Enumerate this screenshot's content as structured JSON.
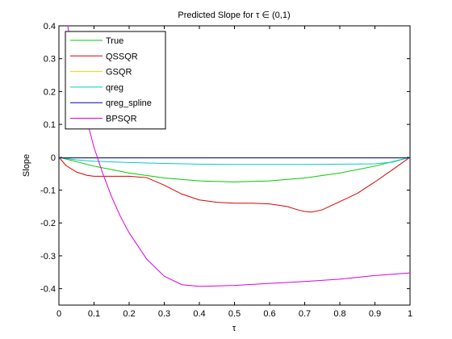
{
  "chart_data": {
    "type": "line",
    "title": "Predicted Slope for τ ∈ (0,1)",
    "xlabel": "τ",
    "ylabel": "Slope",
    "xlim": [
      0,
      1
    ],
    "ylim": [
      -0.45,
      0.4
    ],
    "xticks": [
      "0",
      "0.1",
      "0.2",
      "0.3",
      "0.4",
      "0.5",
      "0.6",
      "0.7",
      "0.8",
      "0.9",
      "1"
    ],
    "xtick_values": [
      0,
      0.1,
      0.2,
      0.3,
      0.4,
      0.5,
      0.6,
      0.7,
      0.8,
      0.9,
      1
    ],
    "yticks": [
      "0.4",
      "0.3",
      "0.2",
      "0.1",
      "0",
      "-0.1",
      "-0.2",
      "-0.3",
      "-0.4"
    ],
    "ytick_values": [
      0.4,
      0.3,
      0.2,
      0.1,
      0,
      -0.1,
      -0.2,
      -0.3,
      -0.4
    ],
    "grid": false,
    "legend_position": "top-left",
    "series": [
      {
        "name": "True",
        "color": "#00cc00",
        "x": [
          0,
          0.1,
          0.2,
          0.3,
          0.4,
          0.5,
          0.6,
          0.7,
          0.8,
          0.9,
          1
        ],
        "y": [
          0,
          -0.027,
          -0.048,
          -0.063,
          -0.072,
          -0.075,
          -0.072,
          -0.063,
          -0.048,
          -0.027,
          0
        ]
      },
      {
        "name": "QSSQR",
        "color": "#dd0000",
        "x": [
          0,
          0.02,
          0.05,
          0.08,
          0.1,
          0.15,
          0.2,
          0.25,
          0.3,
          0.35,
          0.4,
          0.45,
          0.5,
          0.55,
          0.6,
          0.65,
          0.68,
          0.7,
          0.72,
          0.75,
          0.8,
          0.85,
          0.9,
          0.95,
          0.98,
          1
        ],
        "y": [
          0,
          -0.025,
          -0.045,
          -0.055,
          -0.058,
          -0.058,
          -0.058,
          -0.062,
          -0.085,
          -0.112,
          -0.13,
          -0.137,
          -0.14,
          -0.14,
          -0.142,
          -0.15,
          -0.16,
          -0.165,
          -0.167,
          -0.16,
          -0.135,
          -0.11,
          -0.075,
          -0.038,
          -0.015,
          0
        ]
      },
      {
        "name": "GSQR",
        "color": "#dddd00",
        "x": [
          0,
          0.25,
          0.5,
          0.75,
          1
        ],
        "y": [
          -0.001,
          -0.001,
          -0.001,
          -0.001,
          -0.001
        ]
      },
      {
        "name": "qreg",
        "color": "#00cccc",
        "x": [
          0,
          0.05,
          0.1,
          0.2,
          0.3,
          0.4,
          0.5,
          0.6,
          0.7,
          0.8,
          0.9,
          0.95,
          1
        ],
        "y": [
          0,
          -0.008,
          -0.012,
          -0.016,
          -0.019,
          -0.021,
          -0.022,
          -0.022,
          -0.022,
          -0.021,
          -0.02,
          -0.015,
          0
        ]
      },
      {
        "name": "qreg_spline",
        "color": "#0000aa",
        "x": [
          0,
          0.25,
          0.5,
          0.75,
          1
        ],
        "y": [
          -0.002,
          -0.002,
          -0.002,
          -0.002,
          -0.002
        ]
      },
      {
        "name": "BPSQR",
        "color": "#dd00dd",
        "x": [
          0.025,
          0.05,
          0.075,
          0.1,
          0.125,
          0.15,
          0.175,
          0.2,
          0.25,
          0.3,
          0.35,
          0.4,
          0.5,
          0.6,
          0.7,
          0.8,
          0.9,
          1
        ],
        "y": [
          0.4,
          0.25,
          0.13,
          0.03,
          -0.05,
          -0.12,
          -0.18,
          -0.23,
          -0.31,
          -0.362,
          -0.388,
          -0.393,
          -0.39,
          -0.384,
          -0.378,
          -0.371,
          -0.36,
          -0.352
        ]
      }
    ]
  }
}
